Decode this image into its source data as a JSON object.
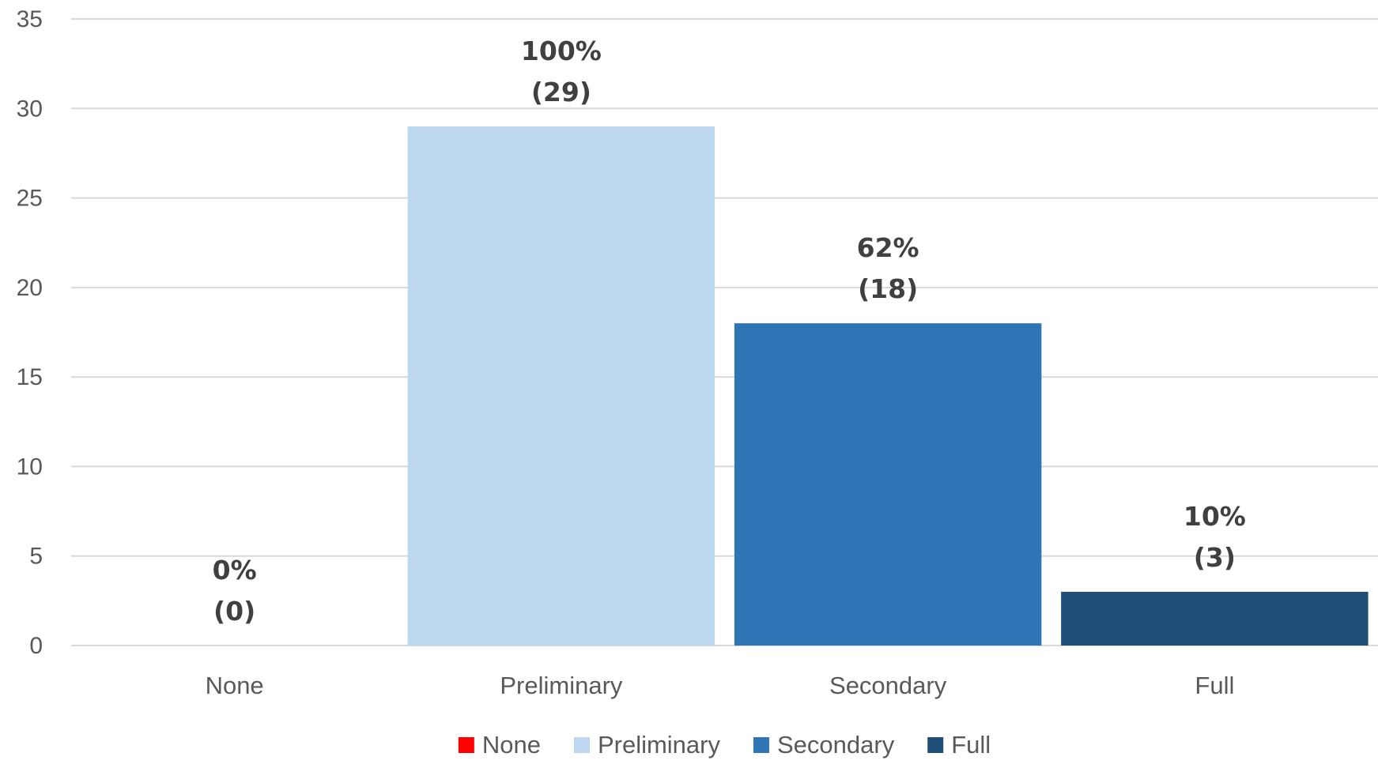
{
  "chart_data": {
    "type": "bar",
    "categories": [
      "None",
      "Preliminary",
      "Secondary",
      "Full"
    ],
    "values": [
      0,
      29,
      18,
      3
    ],
    "percent_labels": [
      "0%",
      "100%",
      "62%",
      "10%"
    ],
    "count_labels": [
      "(0)",
      "(29)",
      "(18)",
      "(3)"
    ],
    "colors": [
      "#ff0000",
      "#bdd7ee",
      "#2e75b6",
      "#1f4e79"
    ],
    "ylim": [
      0,
      35
    ],
    "yticks": [
      0,
      5,
      10,
      15,
      20,
      25,
      30,
      35
    ],
    "grid": true,
    "legend": {
      "position": "bottom",
      "entries": [
        "None",
        "Preliminary",
        "Secondary",
        "Full"
      ]
    },
    "title": "",
    "xlabel": "",
    "ylabel": ""
  }
}
